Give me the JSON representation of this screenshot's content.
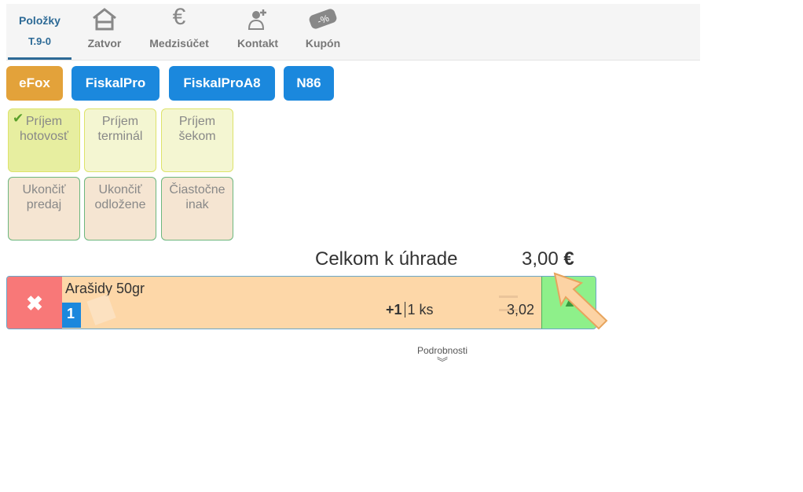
{
  "tabs": [
    {
      "label": "Položky",
      "sub": "T.9-0",
      "active": true
    },
    {
      "label": "Zatvor",
      "icon": "house-icon"
    },
    {
      "label": "Medzisúčet",
      "icon": "euro-icon"
    },
    {
      "label": "Kontakt",
      "icon": "add-contact-icon"
    },
    {
      "label": "Kupón",
      "icon": "coupon-icon"
    }
  ],
  "printers": [
    {
      "label": "eFox",
      "color": "#e3a23a"
    },
    {
      "label": "FiskalPro",
      "color": "#1b88dd"
    },
    {
      "label": "FiskalProA8",
      "color": "#1b88dd"
    },
    {
      "label": "N86",
      "color": "#1b88dd"
    }
  ],
  "payments": [
    {
      "l1": "Príjem",
      "l2": "hotovosť",
      "selected": true
    },
    {
      "l1": "Príjem",
      "l2": "terminál"
    },
    {
      "l1": "Príjem",
      "l2": "šekom"
    }
  ],
  "actions": [
    {
      "l1": "Ukončiť",
      "l2": "predaj"
    },
    {
      "l1": "Ukončiť",
      "l2": "odložene"
    },
    {
      "l1": "Čiastočne",
      "l2": "inak"
    }
  ],
  "total": {
    "label": "Celkom k úhrade",
    "value": "3,00",
    "currency": "€"
  },
  "item": {
    "name": "Arašidy 50gr",
    "index": "1",
    "increment": "+1",
    "qty": "1 ks",
    "price": "3,02"
  },
  "details": "Podrobnosti"
}
